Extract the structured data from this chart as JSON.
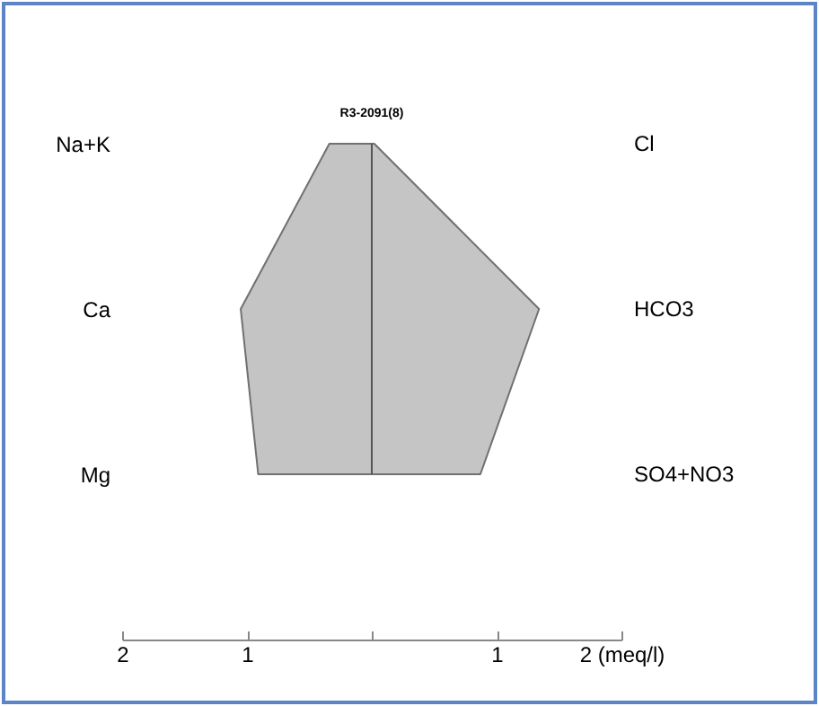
{
  "chart_data": {
    "type": "area",
    "orientation": "horizontal",
    "title": "R3-2091(8)",
    "categories": [
      "Na+K",
      "Ca",
      "Mg"
    ],
    "annotations": [
      "Cl",
      "HCO3",
      "SO4+NO3"
    ],
    "series": [
      {
        "color": "#c4c4c4",
        "values": [
          -0.34,
          -1.05,
          -0.91
        ]
      },
      {
        "color": "#c5c5c5",
        "values": [
          0.02,
          1.34,
          0.87
        ]
      }
    ],
    "xlim": [
      -2,
      2
    ],
    "xticks": [
      {
        "value": -2,
        "label": "2"
      },
      {
        "value": -1,
        "label": "1"
      },
      {
        "value": 0,
        "label": null
      },
      {
        "value": 1,
        "label": "1"
      },
      {
        "value": 2,
        "label": "2 (meq/l)"
      }
    ],
    "ref_lines": [
      {
        "axis": "x",
        "value": 0,
        "label": null,
        "color": "#555555"
      }
    ],
    "grid": false
  }
}
